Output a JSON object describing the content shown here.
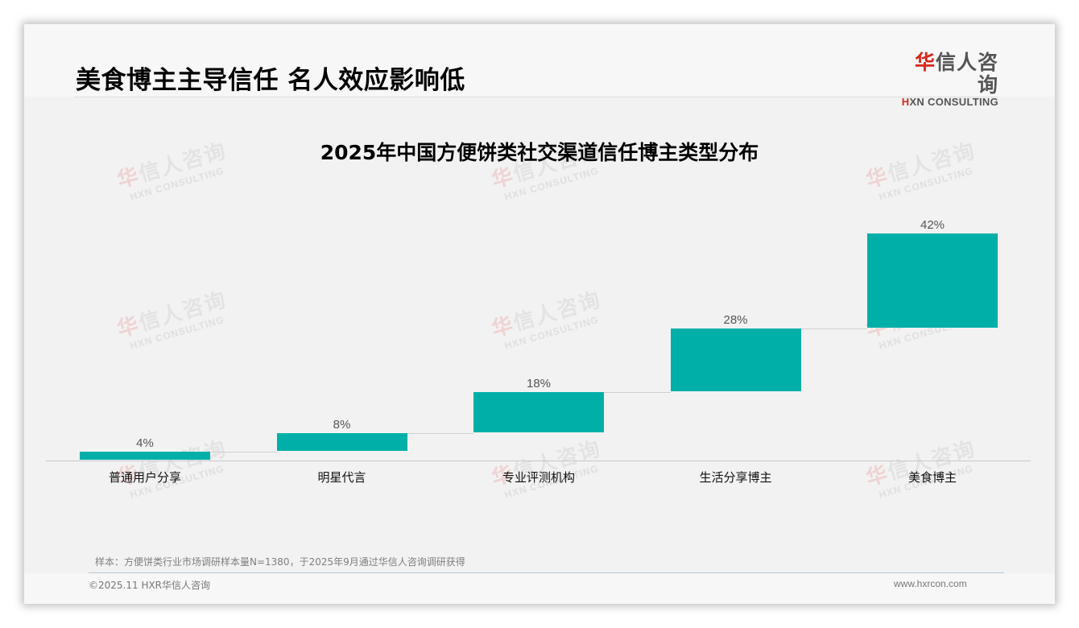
{
  "page": {
    "title": "美食博主主导信任 名人效应影响低",
    "logo": {
      "cn_accent": "华",
      "cn_rest": "信人咨询",
      "en_accent": "H",
      "en_rest": "XN CONSULTING"
    },
    "watermark": {
      "cn_accent": "华",
      "cn_rest": "信人咨询",
      "en": "HXN CONSULTING"
    }
  },
  "chart_data": {
    "type": "bar",
    "subtype": "waterfall",
    "title": "2025年中国方便饼类社交渠道信任博主类型分布",
    "categories": [
      "普通用户分享",
      "明星代言",
      "专业评测机构",
      "生活分享博主",
      "美食博主"
    ],
    "values": [
      4,
      8,
      18,
      28,
      42
    ],
    "value_labels": [
      "4%",
      "8%",
      "18%",
      "28%",
      "42%"
    ],
    "unit": "%",
    "xlabel": "",
    "ylabel": "",
    "ylim": [
      0,
      100
    ],
    "grid": false,
    "legend": null,
    "bar_color": "#00b0a8"
  },
  "footer": {
    "note": "样本：方便饼类行业市场调研样本量N=1380，于2025年9月通过华信人咨询调研获得",
    "copyright": "©2025.11 HXR华信人咨询",
    "website": "www.hxrcon.com"
  }
}
